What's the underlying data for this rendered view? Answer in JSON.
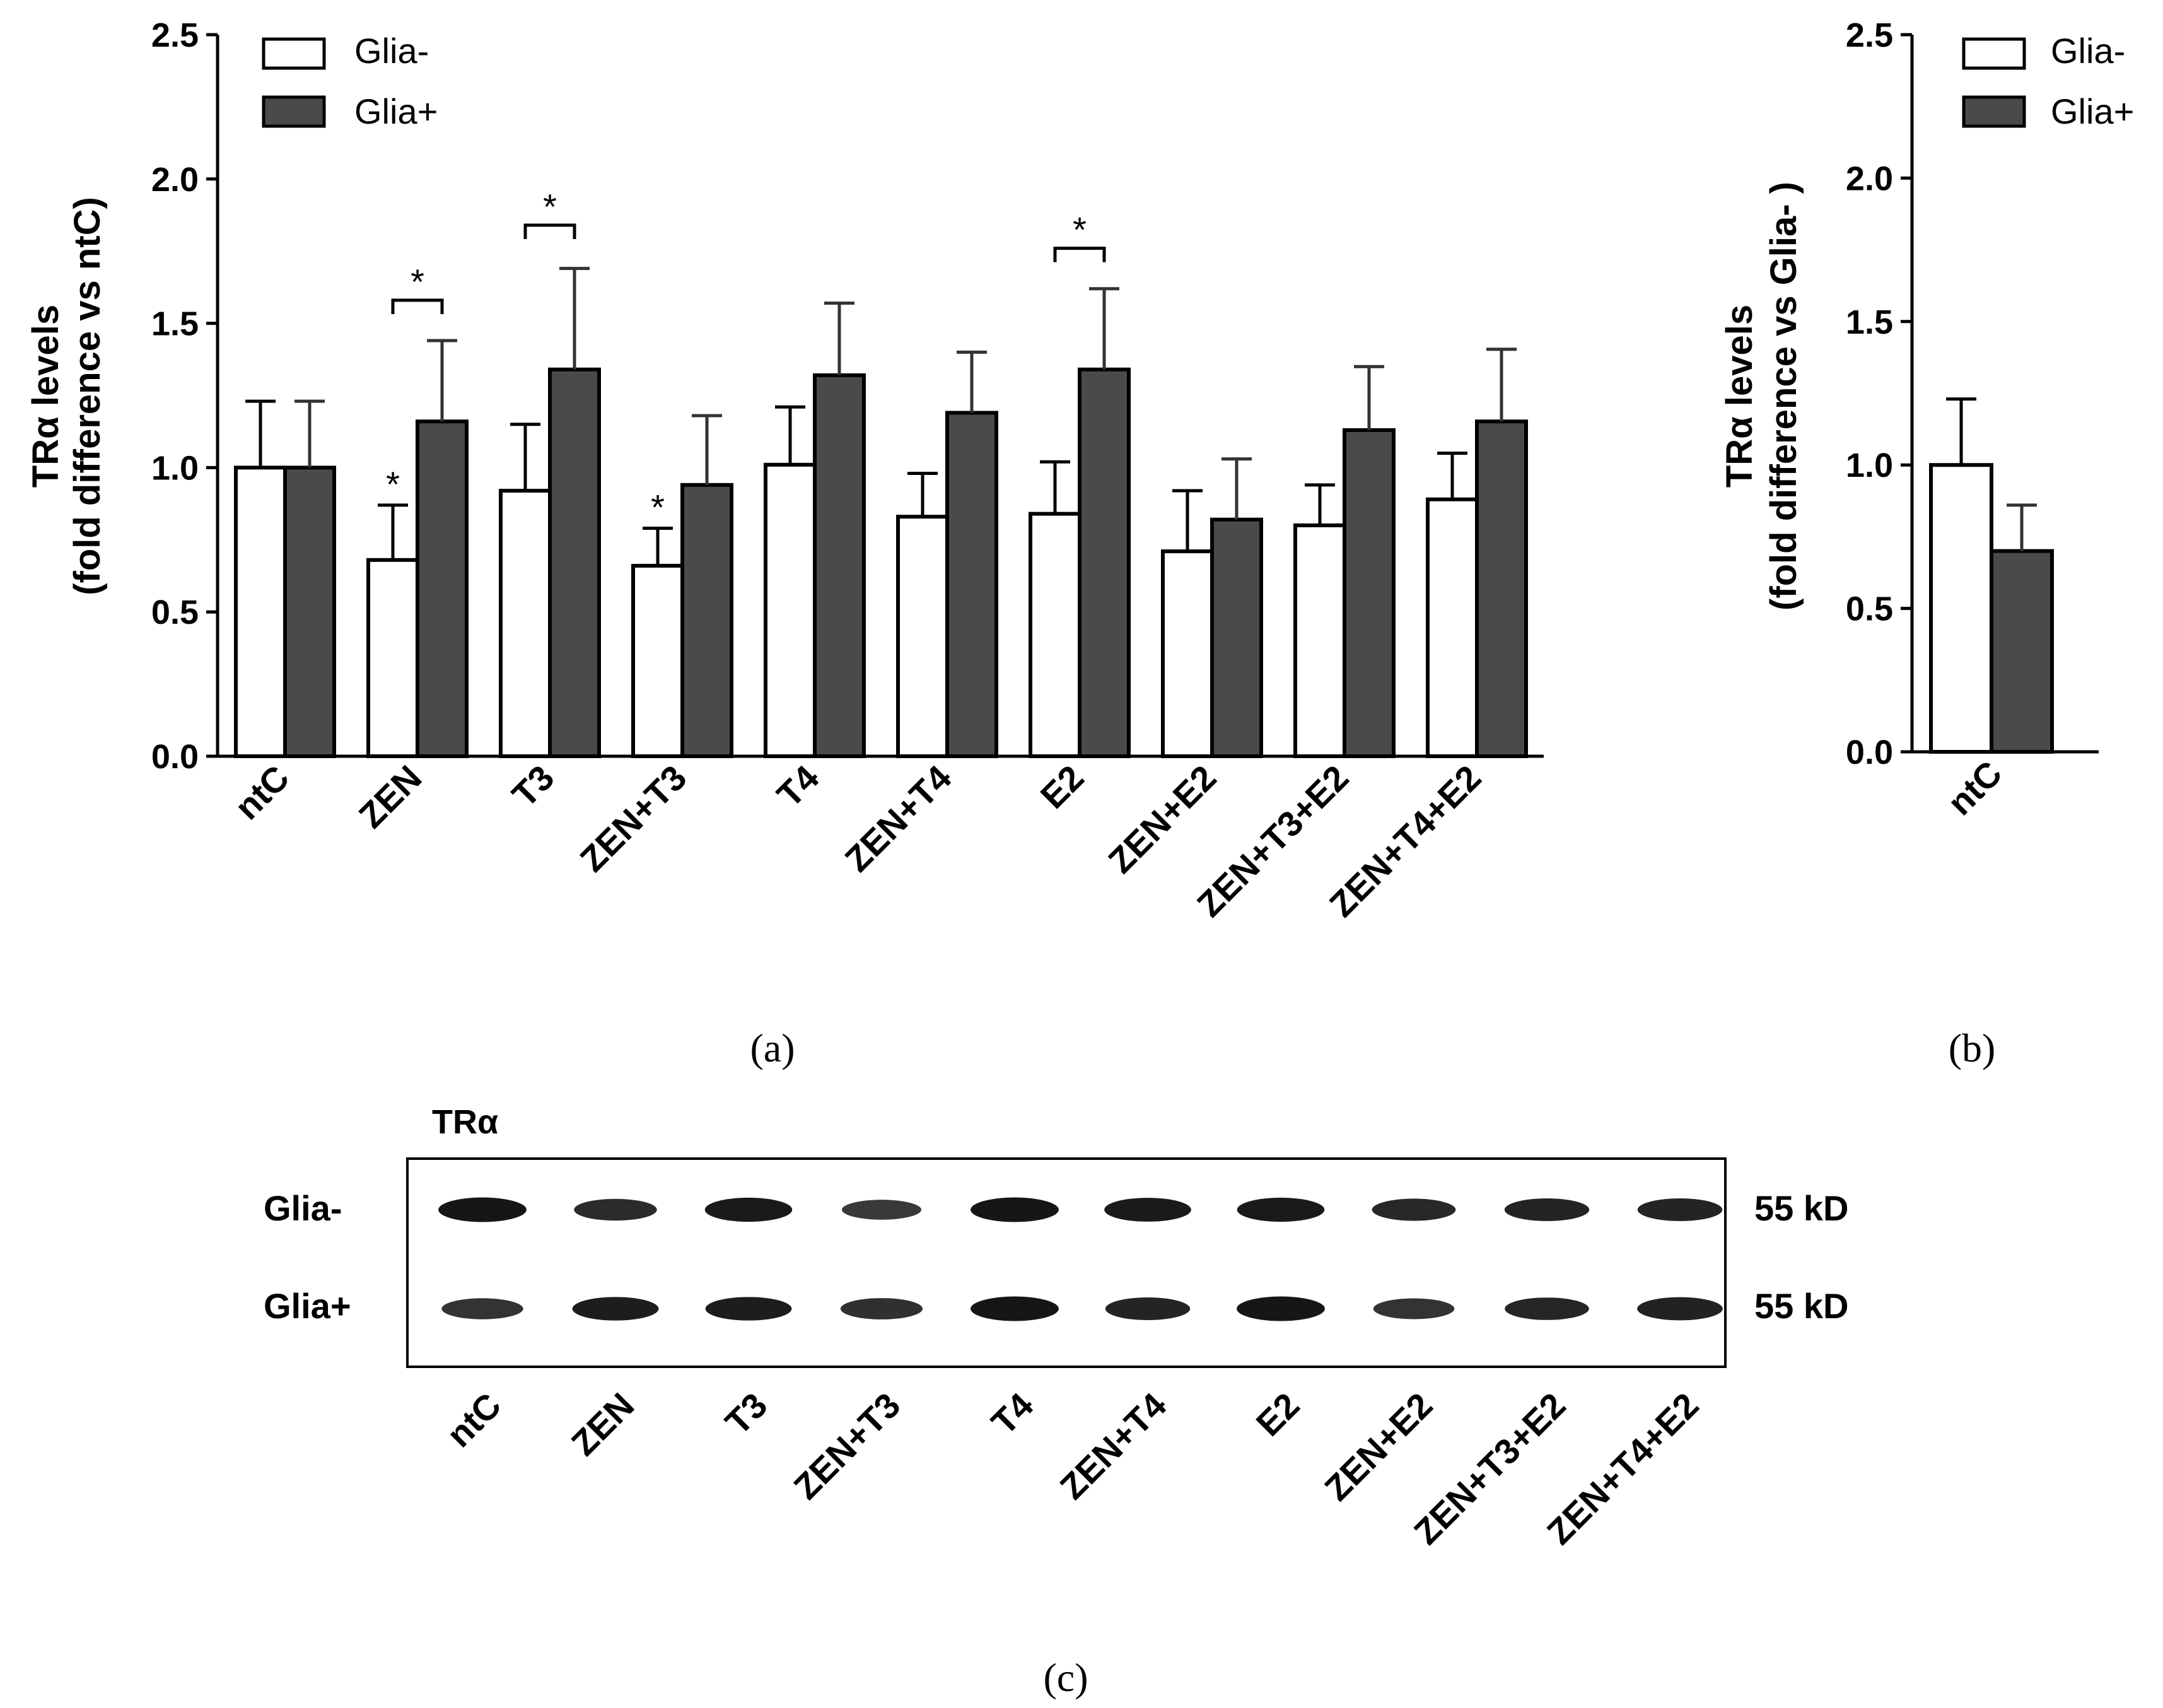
{
  "figure": {
    "panel_a_caption": "(a)",
    "panel_b_caption": "(b)",
    "panel_c_caption": "(c)"
  },
  "colors": {
    "glia_minus_fill": "#ffffff",
    "glia_plus_fill": "#4a4a4a",
    "axis": "#000000",
    "band": "#111111"
  },
  "chart_data": [
    {
      "type": "bar",
      "panel": "a",
      "ylabel_line1": "TRα  levels",
      "ylabel_line2": "(fold difference vs ntC)",
      "ylim": [
        0,
        2.5
      ],
      "yticks": [
        "0.0",
        "0.5",
        "1.0",
        "1.5",
        "2.0",
        "2.5"
      ],
      "legend_position": "top-left",
      "categories": [
        "ntC",
        "ZEN",
        "T3",
        "ZEN+T3",
        "T4",
        "ZEN+T4",
        "E2",
        "ZEN+E2",
        "ZEN+T3+E2",
        "ZEN+T4+E2"
      ],
      "series": [
        {
          "name": "Glia-",
          "values": [
            1.0,
            0.68,
            0.92,
            0.66,
            1.01,
            0.83,
            0.84,
            0.71,
            0.8,
            0.89
          ],
          "errors": [
            0.23,
            0.19,
            0.23,
            0.13,
            0.2,
            0.15,
            0.18,
            0.21,
            0.14,
            0.16
          ]
        },
        {
          "name": "Glia+",
          "values": [
            1.0,
            1.16,
            1.34,
            0.94,
            1.32,
            1.19,
            1.34,
            0.82,
            1.13,
            1.16
          ],
          "errors": [
            0.23,
            0.28,
            0.35,
            0.24,
            0.25,
            0.21,
            0.28,
            0.21,
            0.22,
            0.25
          ]
        }
      ],
      "significance": {
        "star_symbol": "*",
        "single": [
          {
            "category": "ZEN",
            "series": "Glia-"
          },
          {
            "category": "ZEN+T3",
            "series": "Glia-"
          }
        ],
        "brackets": [
          {
            "category": "ZEN",
            "level": 1.58
          },
          {
            "category": "T3",
            "level": 1.84
          },
          {
            "category": "E2",
            "level": 1.76
          }
        ]
      }
    },
    {
      "type": "bar",
      "panel": "b",
      "ylabel_line1": "TRα  levels",
      "ylabel_line2": "(fold difference vs Glia- )",
      "ylim": [
        0,
        2.5
      ],
      "yticks": [
        "0.0",
        "0.5",
        "1.0",
        "1.5",
        "2.0",
        "2.5"
      ],
      "legend_position": "top-right",
      "categories": [
        "ntC"
      ],
      "series": [
        {
          "name": "Glia-",
          "values": [
            1.0
          ],
          "errors": [
            0.23
          ]
        },
        {
          "name": "Glia+",
          "values": [
            0.7
          ],
          "errors": [
            0.16
          ]
        }
      ]
    }
  ],
  "blot": {
    "title": "TRα",
    "row_labels": [
      "Glia-",
      "Glia+"
    ],
    "size_labels": [
      "55 kD",
      "55 kD"
    ],
    "lane_labels": [
      "ntC",
      "ZEN",
      "T3",
      "ZEN+T3",
      "T4",
      "ZEN+T4",
      "E2",
      "ZEN+E2",
      "ZEN+T3+E2",
      "ZEN+T4+E2"
    ],
    "band_intensity": [
      [
        0.95,
        0.75,
        0.92,
        0.62,
        0.95,
        0.9,
        0.92,
        0.78,
        0.82,
        0.82
      ],
      [
        0.7,
        0.88,
        0.88,
        0.72,
        0.95,
        0.82,
        0.95,
        0.68,
        0.8,
        0.85
      ]
    ]
  }
}
